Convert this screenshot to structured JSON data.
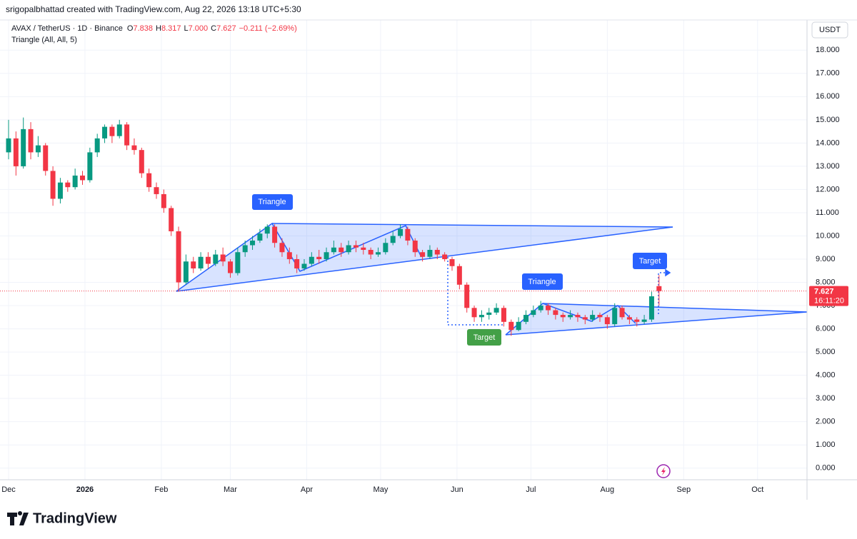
{
  "header": {
    "credit": "srigopalbhattad created with TradingView.com, Aug 22, 2026 13:18 UTC+5:30",
    "symbol": "AVAX / TetherUS · 1D · Binance",
    "ohlc": [
      {
        "key": "O",
        "text": "7.838"
      },
      {
        "key": "H",
        "text": "8.317"
      },
      {
        "key": "L",
        "text": "7.000"
      },
      {
        "key": "C",
        "text": "7.627"
      }
    ],
    "change": "−0.211 (−2.69%)",
    "indicator": "Triangle (All, All, 5)",
    "currency": "USDT",
    "last_price": "7.627",
    "countdown": "16:11:20",
    "logo": "TradingView"
  },
  "annotations": {
    "triangle_1": "Triangle",
    "target_1": "Target",
    "triangle_2": "Triangle",
    "target_2": "Target"
  },
  "chart_data": {
    "type": "candlestick",
    "up_color": "#089981",
    "down_color": "#f23645",
    "last_price_value": 7.627,
    "xlim": [
      -1,
      324
    ],
    "ylim": [
      -0.5,
      19.3
    ],
    "xticks": [
      {
        "value": 0,
        "label": "Dec"
      },
      {
        "value": 31,
        "label": "2026"
      },
      {
        "value": 62,
        "label": "Feb"
      },
      {
        "value": 90,
        "label": "Mar"
      },
      {
        "value": 121,
        "label": "Apr"
      },
      {
        "value": 151,
        "label": "May"
      },
      {
        "value": 182,
        "label": "Jun"
      },
      {
        "value": 212,
        "label": "Jul"
      },
      {
        "value": 243,
        "label": "Aug"
      },
      {
        "value": 274,
        "label": "Sep"
      },
      {
        "value": 304,
        "label": "Oct"
      }
    ],
    "yticks": [
      {
        "value": 0,
        "label": "0.000"
      },
      {
        "value": 1,
        "label": "1.000"
      },
      {
        "value": 2,
        "label": "2.000"
      },
      {
        "value": 3,
        "label": "3.000"
      },
      {
        "value": 4,
        "label": "4.000"
      },
      {
        "value": 5,
        "label": "5.000"
      },
      {
        "value": 6,
        "label": "6.000"
      },
      {
        "value": 7,
        "label": "7.000"
      },
      {
        "value": 8,
        "label": "8.000"
      },
      {
        "value": 9,
        "label": "9.000"
      },
      {
        "value": 10,
        "label": "10.000"
      },
      {
        "value": 11,
        "label": "11.000"
      },
      {
        "value": 12,
        "label": "12.000"
      },
      {
        "value": 13,
        "label": "13.000"
      },
      {
        "value": 14,
        "label": "14.000"
      },
      {
        "value": 15,
        "label": "15.000"
      },
      {
        "value": 16,
        "label": "16.000"
      },
      {
        "value": 17,
        "label": "17.000"
      },
      {
        "value": 18,
        "label": "18.000"
      }
    ],
    "grid": true,
    "x": [
      0,
      3,
      6,
      9,
      12,
      15,
      18,
      21,
      24,
      27,
      30,
      33,
      36,
      39,
      42,
      45,
      48,
      51,
      54,
      57,
      60,
      63,
      66,
      69,
      72,
      75,
      78,
      81,
      84,
      87,
      90,
      93,
      96,
      99,
      102,
      105,
      108,
      111,
      114,
      117,
      120,
      123,
      126,
      129,
      132,
      135,
      138,
      141,
      144,
      147,
      150,
      153,
      156,
      159,
      162,
      165,
      168,
      171,
      174,
      177,
      180,
      183,
      186,
      189,
      192,
      195,
      198,
      201,
      204,
      207,
      210,
      213,
      216,
      219,
      222,
      225,
      228,
      231,
      234,
      237,
      240,
      243,
      246,
      249,
      252,
      255,
      258,
      261,
      264
    ],
    "candles": [
      [
        13.6,
        15.0,
        13.3,
        14.2
      ],
      [
        14.2,
        14.5,
        12.6,
        13.0
      ],
      [
        13.0,
        15.1,
        12.9,
        14.6
      ],
      [
        14.6,
        14.9,
        13.3,
        13.6
      ],
      [
        13.6,
        14.3,
        13.4,
        13.9
      ],
      [
        13.9,
        14.0,
        12.6,
        12.8
      ],
      [
        12.8,
        13.0,
        11.3,
        11.6
      ],
      [
        11.6,
        12.5,
        11.4,
        12.3
      ],
      [
        12.3,
        12.4,
        11.9,
        12.1
      ],
      [
        12.1,
        12.9,
        12.0,
        12.6
      ],
      [
        12.6,
        12.8,
        12.2,
        12.4
      ],
      [
        12.4,
        13.8,
        12.3,
        13.6
      ],
      [
        13.6,
        14.4,
        13.4,
        14.2
      ],
      [
        14.2,
        14.8,
        14.0,
        14.7
      ],
      [
        14.7,
        14.8,
        14.0,
        14.3
      ],
      [
        14.3,
        15.0,
        14.2,
        14.8
      ],
      [
        14.8,
        14.9,
        13.7,
        13.9
      ],
      [
        13.9,
        14.2,
        13.5,
        13.7
      ],
      [
        13.7,
        13.8,
        12.5,
        12.7
      ],
      [
        12.7,
        12.9,
        11.9,
        12.1
      ],
      [
        12.1,
        12.3,
        11.6,
        11.8
      ],
      [
        11.8,
        12.0,
        11.0,
        11.2
      ],
      [
        11.2,
        11.3,
        10.0,
        10.2
      ],
      [
        10.2,
        10.4,
        7.6,
        8.0
      ],
      [
        8.0,
        9.2,
        7.9,
        8.9
      ],
      [
        8.9,
        9.1,
        8.4,
        8.6
      ],
      [
        8.6,
        9.3,
        8.5,
        9.1
      ],
      [
        9.1,
        9.3,
        8.6,
        8.8
      ],
      [
        8.8,
        9.4,
        8.7,
        9.2
      ],
      [
        9.2,
        9.5,
        8.7,
        8.9
      ],
      [
        8.9,
        9.0,
        8.2,
        8.4
      ],
      [
        8.4,
        9.5,
        8.3,
        9.3
      ],
      [
        9.3,
        9.8,
        9.1,
        9.6
      ],
      [
        9.6,
        10.0,
        9.4,
        9.8
      ],
      [
        9.8,
        10.3,
        9.7,
        10.1
      ],
      [
        10.1,
        10.5,
        9.9,
        10.4
      ],
      [
        10.4,
        10.5,
        9.5,
        9.7
      ],
      [
        9.7,
        9.9,
        9.1,
        9.3
      ],
      [
        9.3,
        9.5,
        8.8,
        9.0
      ],
      [
        9.0,
        9.2,
        8.4,
        8.6
      ],
      [
        8.6,
        9.0,
        8.5,
        8.8
      ],
      [
        8.8,
        9.3,
        8.7,
        9.1
      ],
      [
        9.1,
        9.4,
        8.8,
        9.0
      ],
      [
        9.0,
        9.5,
        8.9,
        9.3
      ],
      [
        9.3,
        9.8,
        9.2,
        9.5
      ],
      [
        9.5,
        9.7,
        9.1,
        9.3
      ],
      [
        9.3,
        9.8,
        9.2,
        9.6
      ],
      [
        9.6,
        9.8,
        9.3,
        9.5
      ],
      [
        9.5,
        9.7,
        9.2,
        9.4
      ],
      [
        9.4,
        9.5,
        9.0,
        9.2
      ],
      [
        9.2,
        9.5,
        9.1,
        9.3
      ],
      [
        9.3,
        9.9,
        9.2,
        9.7
      ],
      [
        9.7,
        10.2,
        9.6,
        10.0
      ],
      [
        10.0,
        10.5,
        9.9,
        10.3
      ],
      [
        10.3,
        10.4,
        9.6,
        9.8
      ],
      [
        9.8,
        9.9,
        9.1,
        9.3
      ],
      [
        9.3,
        9.4,
        8.9,
        9.1
      ],
      [
        9.1,
        9.6,
        9.0,
        9.4
      ],
      [
        9.4,
        9.5,
        9.0,
        9.2
      ],
      [
        9.2,
        9.3,
        8.9,
        9.0
      ],
      [
        9.0,
        9.1,
        8.5,
        8.7
      ],
      [
        8.7,
        8.8,
        7.7,
        7.9
      ],
      [
        7.9,
        8.0,
        6.7,
        6.9
      ],
      [
        6.9,
        7.0,
        6.3,
        6.5
      ],
      [
        6.5,
        6.8,
        6.3,
        6.6
      ],
      [
        6.6,
        6.9,
        6.4,
        6.7
      ],
      [
        6.7,
        7.1,
        6.6,
        6.9
      ],
      [
        6.9,
        7.0,
        6.1,
        6.3
      ],
      [
        6.3,
        6.4,
        5.7,
        5.95
      ],
      [
        5.95,
        6.5,
        5.9,
        6.3
      ],
      [
        6.3,
        6.8,
        6.2,
        6.6
      ],
      [
        6.6,
        7.0,
        6.5,
        6.8
      ],
      [
        6.8,
        7.2,
        6.7,
        7.0
      ],
      [
        7.0,
        7.1,
        6.6,
        6.8
      ],
      [
        6.8,
        6.9,
        6.4,
        6.6
      ],
      [
        6.6,
        6.7,
        6.3,
        6.5
      ],
      [
        6.5,
        6.8,
        6.4,
        6.6
      ],
      [
        6.6,
        6.7,
        6.3,
        6.5
      ],
      [
        6.5,
        6.6,
        6.2,
        6.4
      ],
      [
        6.4,
        6.8,
        6.3,
        6.6
      ],
      [
        6.6,
        6.7,
        6.3,
        6.5
      ],
      [
        6.5,
        6.6,
        6.0,
        6.2
      ],
      [
        6.2,
        7.1,
        6.1,
        6.9
      ],
      [
        6.9,
        7.0,
        6.4,
        6.5
      ],
      [
        6.5,
        6.6,
        6.2,
        6.4
      ],
      [
        6.4,
        6.5,
        6.1,
        6.3
      ],
      [
        6.3,
        6.6,
        6.2,
        6.4
      ],
      [
        6.4,
        7.6,
        6.3,
        7.4
      ],
      [
        7.838,
        8.317,
        7.0,
        7.627
      ]
    ]
  }
}
